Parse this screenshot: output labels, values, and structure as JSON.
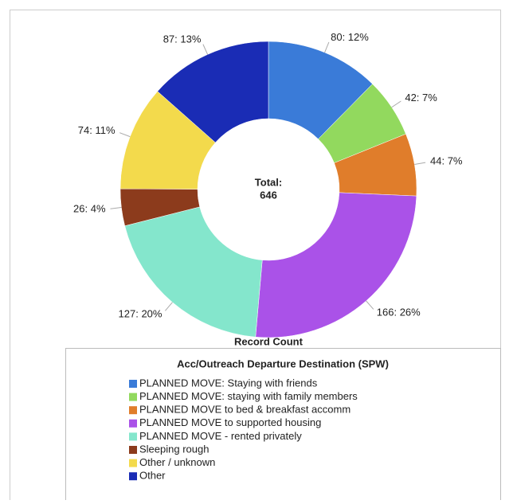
{
  "chart_data": {
    "type": "pie",
    "categories": [
      "PLANNED MOVE: Staying with friends",
      "PLANNED MOVE: staying with family members",
      "PLANNED MOVE to bed & breakfast accomm",
      "PLANNED MOVE to supported housing",
      "PLANNED MOVE - rented privately",
      "Sleeping rough",
      "Other / unknown",
      "Other"
    ],
    "values": [
      80,
      42,
      44,
      166,
      127,
      26,
      74,
      87
    ],
    "value_labels": [
      "80: 12%",
      "42: 7%",
      "44: 7%",
      "166: 26%",
      "127: 20%",
      "26: 4%",
      "74: 11%",
      "87: 13%"
    ],
    "colors": [
      "#3a7bd8",
      "#92d95e",
      "#e07d2b",
      "#aa52e8",
      "#84e6cc",
      "#8c3b1c",
      "#f3da4c",
      "#1a2cb5"
    ],
    "center_label": "Total:",
    "total": 646,
    "value_axis_label": "Record Count",
    "legend_title": "Acc/Outreach Departure Destination (SPW)"
  }
}
